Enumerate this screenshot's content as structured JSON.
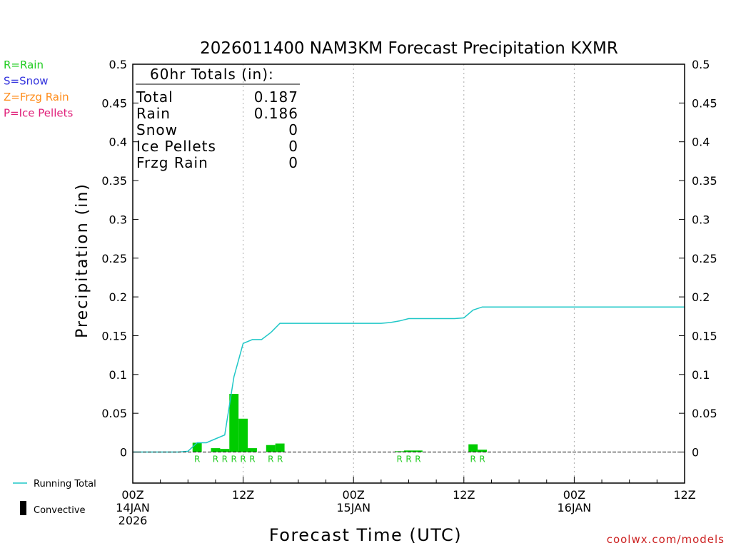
{
  "chart_data": {
    "type": "bar",
    "title": "2026011400 NAM3KM Forecast Precipitation KXMR",
    "xlabel": "Forecast Time (UTC)",
    "ylabel": "Precipitation (in)",
    "xlim_hours": [
      0,
      60
    ],
    "ylim": [
      -0.04,
      0.5
    ],
    "y_ticks": [
      0,
      0.05,
      0.1,
      0.15,
      0.2,
      0.25,
      0.3,
      0.35,
      0.4,
      0.45,
      0.5
    ],
    "y_tick_labels": [
      "0",
      "0.05",
      "0.1",
      "0.15",
      "0.2",
      "0.25",
      "0.3",
      "0.35",
      "0.4",
      "0.45",
      "0.5"
    ],
    "x_ticks": [
      {
        "hour": 0,
        "lines": [
          "00Z",
          "14JAN",
          "2026"
        ]
      },
      {
        "hour": 12,
        "lines": [
          "12Z"
        ]
      },
      {
        "hour": 24,
        "lines": [
          "00Z",
          "15JAN"
        ]
      },
      {
        "hour": 36,
        "lines": [
          "12Z"
        ]
      },
      {
        "hour": 48,
        "lines": [
          "00Z",
          "16JAN"
        ]
      },
      {
        "hour": 60,
        "lines": [
          "12Z"
        ]
      }
    ],
    "grid_hours": [
      12,
      24,
      36,
      48
    ],
    "bars": [
      {
        "hour": 7,
        "value": 0.012,
        "type": "R"
      },
      {
        "hour": 9,
        "value": 0.005,
        "type": "R"
      },
      {
        "hour": 10,
        "value": 0.004,
        "type": "R"
      },
      {
        "hour": 11,
        "value": 0.075,
        "type": "R"
      },
      {
        "hour": 12,
        "value": 0.043,
        "type": "R"
      },
      {
        "hour": 13,
        "value": 0.005,
        "type": "R"
      },
      {
        "hour": 15,
        "value": 0.009,
        "type": "R"
      },
      {
        "hour": 16,
        "value": 0.011,
        "type": "R"
      },
      {
        "hour": 29,
        "value": 0.001,
        "type": "R"
      },
      {
        "hour": 30,
        "value": 0.002,
        "type": "R"
      },
      {
        "hour": 31,
        "value": 0.002,
        "type": "R"
      },
      {
        "hour": 37,
        "value": 0.01,
        "type": "R"
      },
      {
        "hour": 38,
        "value": 0.003,
        "type": "R"
      }
    ],
    "running_total": {
      "name": "Running Total",
      "points": [
        [
          0,
          0
        ],
        [
          1,
          0
        ],
        [
          2,
          0
        ],
        [
          3,
          0
        ],
        [
          4,
          0
        ],
        [
          5,
          0
        ],
        [
          6,
          0.001
        ],
        [
          7,
          0.012
        ],
        [
          8,
          0.012
        ],
        [
          9,
          0.017
        ],
        [
          10,
          0.022
        ],
        [
          11,
          0.097
        ],
        [
          12,
          0.14
        ],
        [
          13,
          0.145
        ],
        [
          14,
          0.145
        ],
        [
          15,
          0.154
        ],
        [
          16,
          0.166
        ],
        [
          17,
          0.166
        ],
        [
          18,
          0.166
        ],
        [
          19,
          0.166
        ],
        [
          20,
          0.166
        ],
        [
          21,
          0.166
        ],
        [
          22,
          0.166
        ],
        [
          23,
          0.166
        ],
        [
          24,
          0.166
        ],
        [
          25,
          0.166
        ],
        [
          26,
          0.166
        ],
        [
          27,
          0.166
        ],
        [
          28,
          0.167
        ],
        [
          29,
          0.169
        ],
        [
          30,
          0.172
        ],
        [
          31,
          0.172
        ],
        [
          32,
          0.172
        ],
        [
          33,
          0.172
        ],
        [
          34,
          0.172
        ],
        [
          35,
          0.172
        ],
        [
          36,
          0.173
        ],
        [
          37,
          0.183
        ],
        [
          38,
          0.187
        ],
        [
          39,
          0.187
        ],
        [
          40,
          0.187
        ],
        [
          44,
          0.187
        ],
        [
          48,
          0.187
        ],
        [
          52,
          0.187
        ],
        [
          56,
          0.187
        ],
        [
          60,
          0.187
        ]
      ]
    },
    "totals_box": {
      "title": "60hr Totals (in):",
      "rows": [
        {
          "label": "Total",
          "value": "0.187"
        },
        {
          "label": "Rain",
          "value": "0.186"
        },
        {
          "label": "Snow",
          "value": "0"
        },
        {
          "label": "Ice Pellets",
          "value": "0"
        },
        {
          "label": "Frzg Rain",
          "value": "0"
        }
      ]
    },
    "type_legend": [
      {
        "text": "R=Rain",
        "color": "#22cc22"
      },
      {
        "text": "S=Snow",
        "color": "#3333dd"
      },
      {
        "text": "Z=Frzg Rain",
        "color": "#ff8c1a"
      },
      {
        "text": "P=Ice Pellets",
        "color": "#e0207a"
      }
    ],
    "series_legend": [
      {
        "text": "Running Total",
        "symbol": "line",
        "color": "#1fc7c7"
      },
      {
        "text": "Convective",
        "symbol": "bar",
        "color": "#000000"
      }
    ],
    "credit": "coolwx.com/models"
  },
  "colors": {
    "bar": "#00cc00",
    "bar_label": "#22cc22",
    "running_total": "#1fc7c7",
    "grid": "#aaaaaa",
    "credit": "#cc2222"
  }
}
